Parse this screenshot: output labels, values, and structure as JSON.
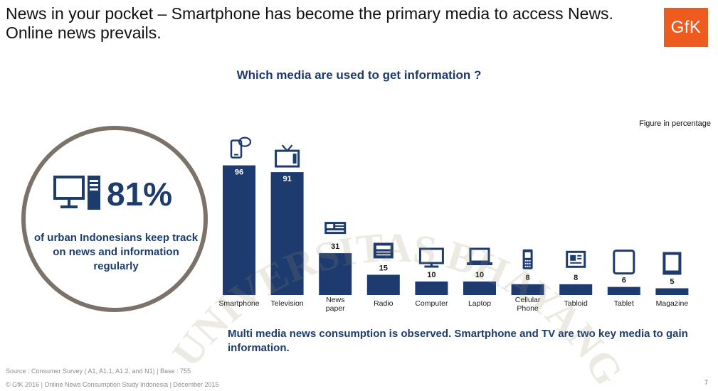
{
  "slide": {
    "title": "News in your pocket – Smartphone has become the primary media to access News. Online news prevails.",
    "logo_text": "GfK",
    "question": "Which media are used to get information ?",
    "figure_note": "Figure in percentage",
    "kpi": {
      "value": "81%",
      "caption": "of urban Indonesians keep track on news and information regularly",
      "icons": [
        "monitor-icon",
        "pc-tower-icon"
      ]
    },
    "conclusion": "Multi media news consumption is observed. Smartphone and TV are two key media to gain information.",
    "source": "Source : Consumer Survey  ( A1, A1.1, A1.2, and N1) | Base : 755",
    "copyright": "© GfK 2016 | Online News Consumption Study Indonesia | December 2015",
    "page_number": "7",
    "watermark_text": "UNIVERSITAS BHAYANGKARA"
  },
  "colors": {
    "bar": "#1e3b70",
    "accent": "#ef5a1f",
    "text_blue": "#1c3d6c",
    "ring": "#7b7369"
  },
  "chart_data": {
    "type": "bar",
    "title": "Which media are used to get information ?",
    "unit_note": "Figure in percentage",
    "categories": [
      "Smartphone",
      "Television",
      "News paper",
      "Radio",
      "Computer",
      "Laptop",
      "Cellular Phone",
      "Tabloid",
      "Tablet",
      "Magazine"
    ],
    "values": [
      96,
      91,
      31,
      15,
      10,
      10,
      8,
      8,
      6,
      5
    ],
    "category_icons": [
      "smartphone-icon",
      "television-icon",
      "newspaper-icon",
      "radio-icon",
      "computer-icon",
      "laptop-icon",
      "cellular-phone-icon",
      "tabloid-icon",
      "tablet-icon",
      "magazine-icon"
    ],
    "ylim": [
      0,
      100
    ],
    "xlabel": "",
    "ylabel": "",
    "grid": false,
    "legend": "none"
  }
}
